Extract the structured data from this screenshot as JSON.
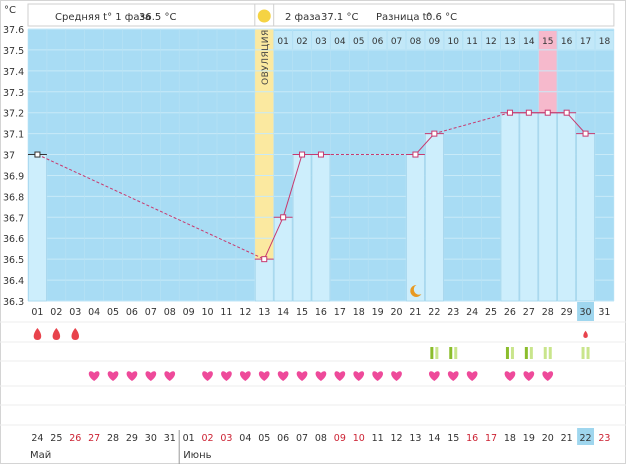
{
  "header": {
    "unit_label": "°C",
    "phase1_label": "Средняя t° 1 фаза",
    "phase1_value": "36.5 °C",
    "phase2_label": "2 фаза",
    "phase2_value": "37.1 °C",
    "diff_label": "Разница t°",
    "diff_value": "0.6 °C"
  },
  "chart_data": {
    "type": "line",
    "ylabel": "°C",
    "ylim": [
      36.3,
      37.6
    ],
    "yticks": [
      "37.6",
      "37.5",
      "37.4",
      "37.3",
      "37.2",
      "37.1",
      "37",
      "36.9",
      "36.8",
      "36.7",
      "36.6",
      "36.5",
      "36.4",
      "36.3"
    ],
    "cycle_days": [
      "01",
      "02",
      "03",
      "04",
      "05",
      "06",
      "07",
      "08",
      "09",
      "10",
      "11",
      "12",
      "13",
      "14",
      "15",
      "16",
      "17",
      "18",
      "19",
      "20",
      "21",
      "22",
      "23",
      "24",
      "25",
      "26",
      "27",
      "28",
      "29",
      "30",
      "31"
    ],
    "top_days": [
      "01",
      "02",
      "03",
      "04",
      "05",
      "06",
      "07",
      "08",
      "09",
      "10",
      "11",
      "12",
      "13",
      "14",
      "15",
      "16",
      "17",
      "18"
    ],
    "ovulation_label": "ОВУЛЯЦИЯ",
    "ovulation_day": 13,
    "highlight_top_day": "15",
    "current_day": "30",
    "moon_day": 21,
    "points": [
      {
        "day": 1,
        "temp": 37.0
      },
      {
        "day": 13,
        "temp": 36.5
      },
      {
        "day": 14,
        "temp": 36.7
      },
      {
        "day": 15,
        "temp": 37.0
      },
      {
        "day": 16,
        "temp": 37.0
      },
      {
        "day": 21,
        "temp": 37.0
      },
      {
        "day": 22,
        "temp": 37.1
      },
      {
        "day": 26,
        "temp": 37.2
      },
      {
        "day": 27,
        "temp": 37.2
      },
      {
        "day": 28,
        "temp": 37.2
      },
      {
        "day": 29,
        "temp": 37.2
      },
      {
        "day": 30,
        "temp": 37.1
      }
    ],
    "bars": [
      {
        "day": 1,
        "temp": 37.0
      },
      {
        "day": 13,
        "temp": 36.5
      },
      {
        "day": 14,
        "temp": 36.7
      },
      {
        "day": 15,
        "temp": 37.0
      },
      {
        "day": 16,
        "temp": 37.0
      },
      {
        "day": 21,
        "temp": 37.0
      },
      {
        "day": 22,
        "temp": 37.1
      },
      {
        "day": 26,
        "temp": 37.2
      },
      {
        "day": 27,
        "temp": 37.2
      },
      {
        "day": 28,
        "temp": 37.2
      },
      {
        "day": 29,
        "temp": 37.2
      },
      {
        "day": 30,
        "temp": 37.1
      }
    ],
    "dashed_segments": [
      [
        1,
        13
      ],
      [
        16,
        21
      ],
      [
        22,
        26
      ]
    ],
    "period_days": [
      1,
      2,
      3
    ],
    "period_small_days": [
      30
    ],
    "test_days": [
      [
        22,
        "dark"
      ],
      [
        23,
        "dark"
      ],
      [
        26,
        "dark"
      ],
      [
        27,
        "dark"
      ],
      [
        28,
        "light"
      ],
      [
        30,
        "light"
      ]
    ],
    "heart_days": [
      4,
      5,
      6,
      7,
      8,
      10,
      11,
      12,
      13,
      14,
      15,
      16,
      17,
      18,
      19,
      20,
      22,
      23,
      24,
      26,
      27,
      28
    ],
    "dates": [
      "24",
      "25",
      "26",
      "27",
      "28",
      "29",
      "30",
      "31",
      "01",
      "02",
      "03",
      "04",
      "05",
      "06",
      "07",
      "08",
      "09",
      "10",
      "11",
      "12",
      "13",
      "14",
      "15",
      "16",
      "17",
      "18",
      "19",
      "20",
      "21",
      "22",
      "23"
    ],
    "red_dates": [
      "26",
      "27",
      "02",
      "03",
      "09",
      "10",
      "16",
      "17",
      "23"
    ],
    "current_date": "22",
    "month_labels": [
      "Май",
      "Июнь"
    ]
  },
  "colors": {
    "chart_bg": "#a8dcf4",
    "grid": "#c8eaf8",
    "bar": "#cdeefc",
    "bar_edge": "#9fd3ea",
    "ovulation": "#fbe9a0",
    "line": "#c8396e",
    "highlight": "#f6b9cc",
    "heart": "#ee4a9a",
    "drop": "#e8434c",
    "test_dark": "#8bbd2c",
    "test_light": "#c9e58c",
    "sun": "#f5d343",
    "moon": "#e89a22",
    "current": "#9fd6ee",
    "red_text": "#cc2233"
  }
}
